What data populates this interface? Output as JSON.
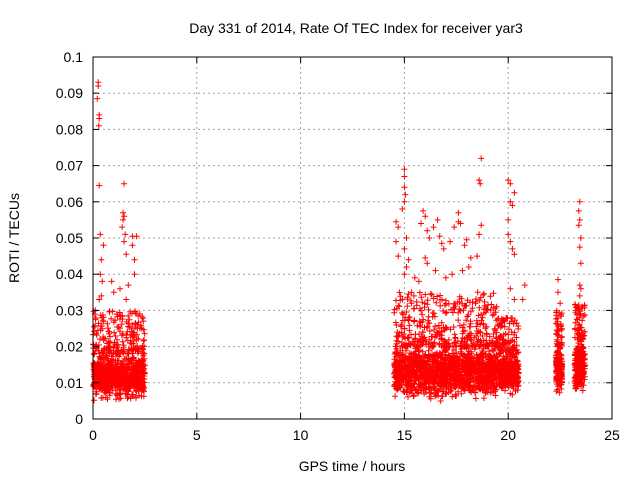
{
  "chart_data": {
    "type": "scatter",
    "title": "Day 331 of 2014, Rate Of TEC Index for receiver yar3",
    "xlabel": "GPS time / hours",
    "ylabel": "ROTI / TECUs",
    "xlim": [
      0,
      25
    ],
    "ylim": [
      0,
      0.1
    ],
    "xticks": [
      0,
      5,
      10,
      15,
      20,
      25
    ],
    "xtick_labels": [
      "0",
      "5",
      "10",
      "15",
      "20",
      "25"
    ],
    "yticks": [
      0,
      0.01,
      0.02,
      0.03,
      0.04,
      0.05,
      0.06,
      0.07,
      0.08,
      0.09,
      0.1
    ],
    "ytick_labels": [
      "0",
      "0.01",
      "0.02",
      "0.03",
      "0.04",
      "0.05",
      "0.06",
      "0.07",
      "0.08",
      "0.09",
      "0.1"
    ],
    "grid": true,
    "marker": "plus",
    "color": "#ff0000",
    "clusters": [
      {
        "x_range": [
          0.0,
          2.5
        ],
        "y_core": [
          0.004,
          0.018
        ],
        "y_spread": [
          0.018,
          0.03
        ]
      },
      {
        "x_range": [
          14.5,
          19.5
        ],
        "y_core": [
          0.004,
          0.02
        ],
        "y_spread": [
          0.02,
          0.035
        ]
      },
      {
        "x_range": [
          19.5,
          20.5
        ],
        "y_core": [
          0.006,
          0.018
        ],
        "y_spread": [
          0.018,
          0.028
        ]
      },
      {
        "x_range": [
          22.3,
          22.6
        ],
        "y_core": [
          0.006,
          0.02
        ],
        "y_spread": [
          0.02,
          0.03
        ]
      },
      {
        "x_range": [
          23.2,
          23.7
        ],
        "y_core": [
          0.005,
          0.022
        ],
        "y_spread": [
          0.022,
          0.032
        ]
      }
    ],
    "outliers": [
      {
        "x": 0.25,
        "y": 0.093
      },
      {
        "x": 0.25,
        "y": 0.092
      },
      {
        "x": 0.2,
        "y": 0.0885
      },
      {
        "x": 0.3,
        "y": 0.084
      },
      {
        "x": 0.3,
        "y": 0.083
      },
      {
        "x": 0.28,
        "y": 0.081
      },
      {
        "x": 0.3,
        "y": 0.0645
      },
      {
        "x": 0.35,
        "y": 0.051
      },
      {
        "x": 0.5,
        "y": 0.048
      },
      {
        "x": 0.4,
        "y": 0.044
      },
      {
        "x": 0.35,
        "y": 0.04
      },
      {
        "x": 0.45,
        "y": 0.038
      },
      {
        "x": 0.4,
        "y": 0.034
      },
      {
        "x": 0.3,
        "y": 0.033
      },
      {
        "x": 1.5,
        "y": 0.065
      },
      {
        "x": 1.45,
        "y": 0.057
      },
      {
        "x": 1.5,
        "y": 0.056
      },
      {
        "x": 1.45,
        "y": 0.055
      },
      {
        "x": 1.4,
        "y": 0.053
      },
      {
        "x": 1.55,
        "y": 0.051
      },
      {
        "x": 1.5,
        "y": 0.049
      },
      {
        "x": 1.9,
        "y": 0.0505
      },
      {
        "x": 2.1,
        "y": 0.0505
      },
      {
        "x": 1.9,
        "y": 0.048
      },
      {
        "x": 2.0,
        "y": 0.044
      },
      {
        "x": 2.0,
        "y": 0.04
      },
      {
        "x": 1.6,
        "y": 0.0455
      },
      {
        "x": 1.7,
        "y": 0.037
      },
      {
        "x": 1.6,
        "y": 0.033
      },
      {
        "x": 1.3,
        "y": 0.036
      },
      {
        "x": 0.9,
        "y": 0.038
      },
      {
        "x": 1.0,
        "y": 0.035
      },
      {
        "x": 15.0,
        "y": 0.069
      },
      {
        "x": 15.0,
        "y": 0.067
      },
      {
        "x": 15.0,
        "y": 0.064
      },
      {
        "x": 15.05,
        "y": 0.062
      },
      {
        "x": 15.0,
        "y": 0.06
      },
      {
        "x": 14.9,
        "y": 0.058
      },
      {
        "x": 14.6,
        "y": 0.0545
      },
      {
        "x": 14.7,
        "y": 0.053
      },
      {
        "x": 14.6,
        "y": 0.049
      },
      {
        "x": 14.7,
        "y": 0.045
      },
      {
        "x": 15.1,
        "y": 0.05
      },
      {
        "x": 15.0,
        "y": 0.047
      },
      {
        "x": 15.2,
        "y": 0.044
      },
      {
        "x": 15.1,
        "y": 0.042
      },
      {
        "x": 15.0,
        "y": 0.04
      },
      {
        "x": 15.9,
        "y": 0.0575
      },
      {
        "x": 16.0,
        "y": 0.056
      },
      {
        "x": 15.8,
        "y": 0.054
      },
      {
        "x": 16.1,
        "y": 0.052
      },
      {
        "x": 16.2,
        "y": 0.05
      },
      {
        "x": 16.4,
        "y": 0.053
      },
      {
        "x": 16.6,
        "y": 0.055
      },
      {
        "x": 16.7,
        "y": 0.0505
      },
      {
        "x": 16.8,
        "y": 0.0485
      },
      {
        "x": 16.9,
        "y": 0.047
      },
      {
        "x": 17.2,
        "y": 0.049
      },
      {
        "x": 17.4,
        "y": 0.053
      },
      {
        "x": 17.6,
        "y": 0.057
      },
      {
        "x": 17.6,
        "y": 0.0545
      },
      {
        "x": 17.7,
        "y": 0.054
      },
      {
        "x": 17.9,
        "y": 0.048
      },
      {
        "x": 18.0,
        "y": 0.0495
      },
      {
        "x": 18.1,
        "y": 0.042
      },
      {
        "x": 18.2,
        "y": 0.0445
      },
      {
        "x": 18.7,
        "y": 0.072
      },
      {
        "x": 18.6,
        "y": 0.066
      },
      {
        "x": 18.65,
        "y": 0.065
      },
      {
        "x": 18.7,
        "y": 0.0535
      },
      {
        "x": 18.6,
        "y": 0.051
      },
      {
        "x": 18.5,
        "y": 0.045
      },
      {
        "x": 16.0,
        "y": 0.0445
      },
      {
        "x": 16.1,
        "y": 0.043
      },
      {
        "x": 16.5,
        "y": 0.041
      },
      {
        "x": 17.0,
        "y": 0.039
      },
      {
        "x": 17.3,
        "y": 0.04
      },
      {
        "x": 17.8,
        "y": 0.041
      },
      {
        "x": 15.5,
        "y": 0.039
      },
      {
        "x": 15.7,
        "y": 0.038
      },
      {
        "x": 20.0,
        "y": 0.066
      },
      {
        "x": 20.1,
        "y": 0.065
      },
      {
        "x": 20.1,
        "y": 0.06
      },
      {
        "x": 20.2,
        "y": 0.059
      },
      {
        "x": 20.0,
        "y": 0.055
      },
      {
        "x": 20.3,
        "y": 0.0625
      },
      {
        "x": 20.0,
        "y": 0.051
      },
      {
        "x": 20.1,
        "y": 0.049
      },
      {
        "x": 20.2,
        "y": 0.047
      },
      {
        "x": 20.3,
        "y": 0.0455
      },
      {
        "x": 20.8,
        "y": 0.037
      },
      {
        "x": 20.7,
        "y": 0.033
      },
      {
        "x": 20.1,
        "y": 0.036
      },
      {
        "x": 20.3,
        "y": 0.033
      },
      {
        "x": 22.4,
        "y": 0.0385
      },
      {
        "x": 22.4,
        "y": 0.035
      },
      {
        "x": 22.5,
        "y": 0.032
      },
      {
        "x": 23.45,
        "y": 0.06
      },
      {
        "x": 23.4,
        "y": 0.0575
      },
      {
        "x": 23.45,
        "y": 0.055
      },
      {
        "x": 23.4,
        "y": 0.0535
      },
      {
        "x": 23.5,
        "y": 0.05
      },
      {
        "x": 23.45,
        "y": 0.0475
      },
      {
        "x": 23.5,
        "y": 0.043
      },
      {
        "x": 23.45,
        "y": 0.037
      },
      {
        "x": 23.45,
        "y": 0.034
      },
      {
        "x": 23.4,
        "y": 0.0315
      },
      {
        "x": 23.5,
        "y": 0.036
      }
    ]
  }
}
